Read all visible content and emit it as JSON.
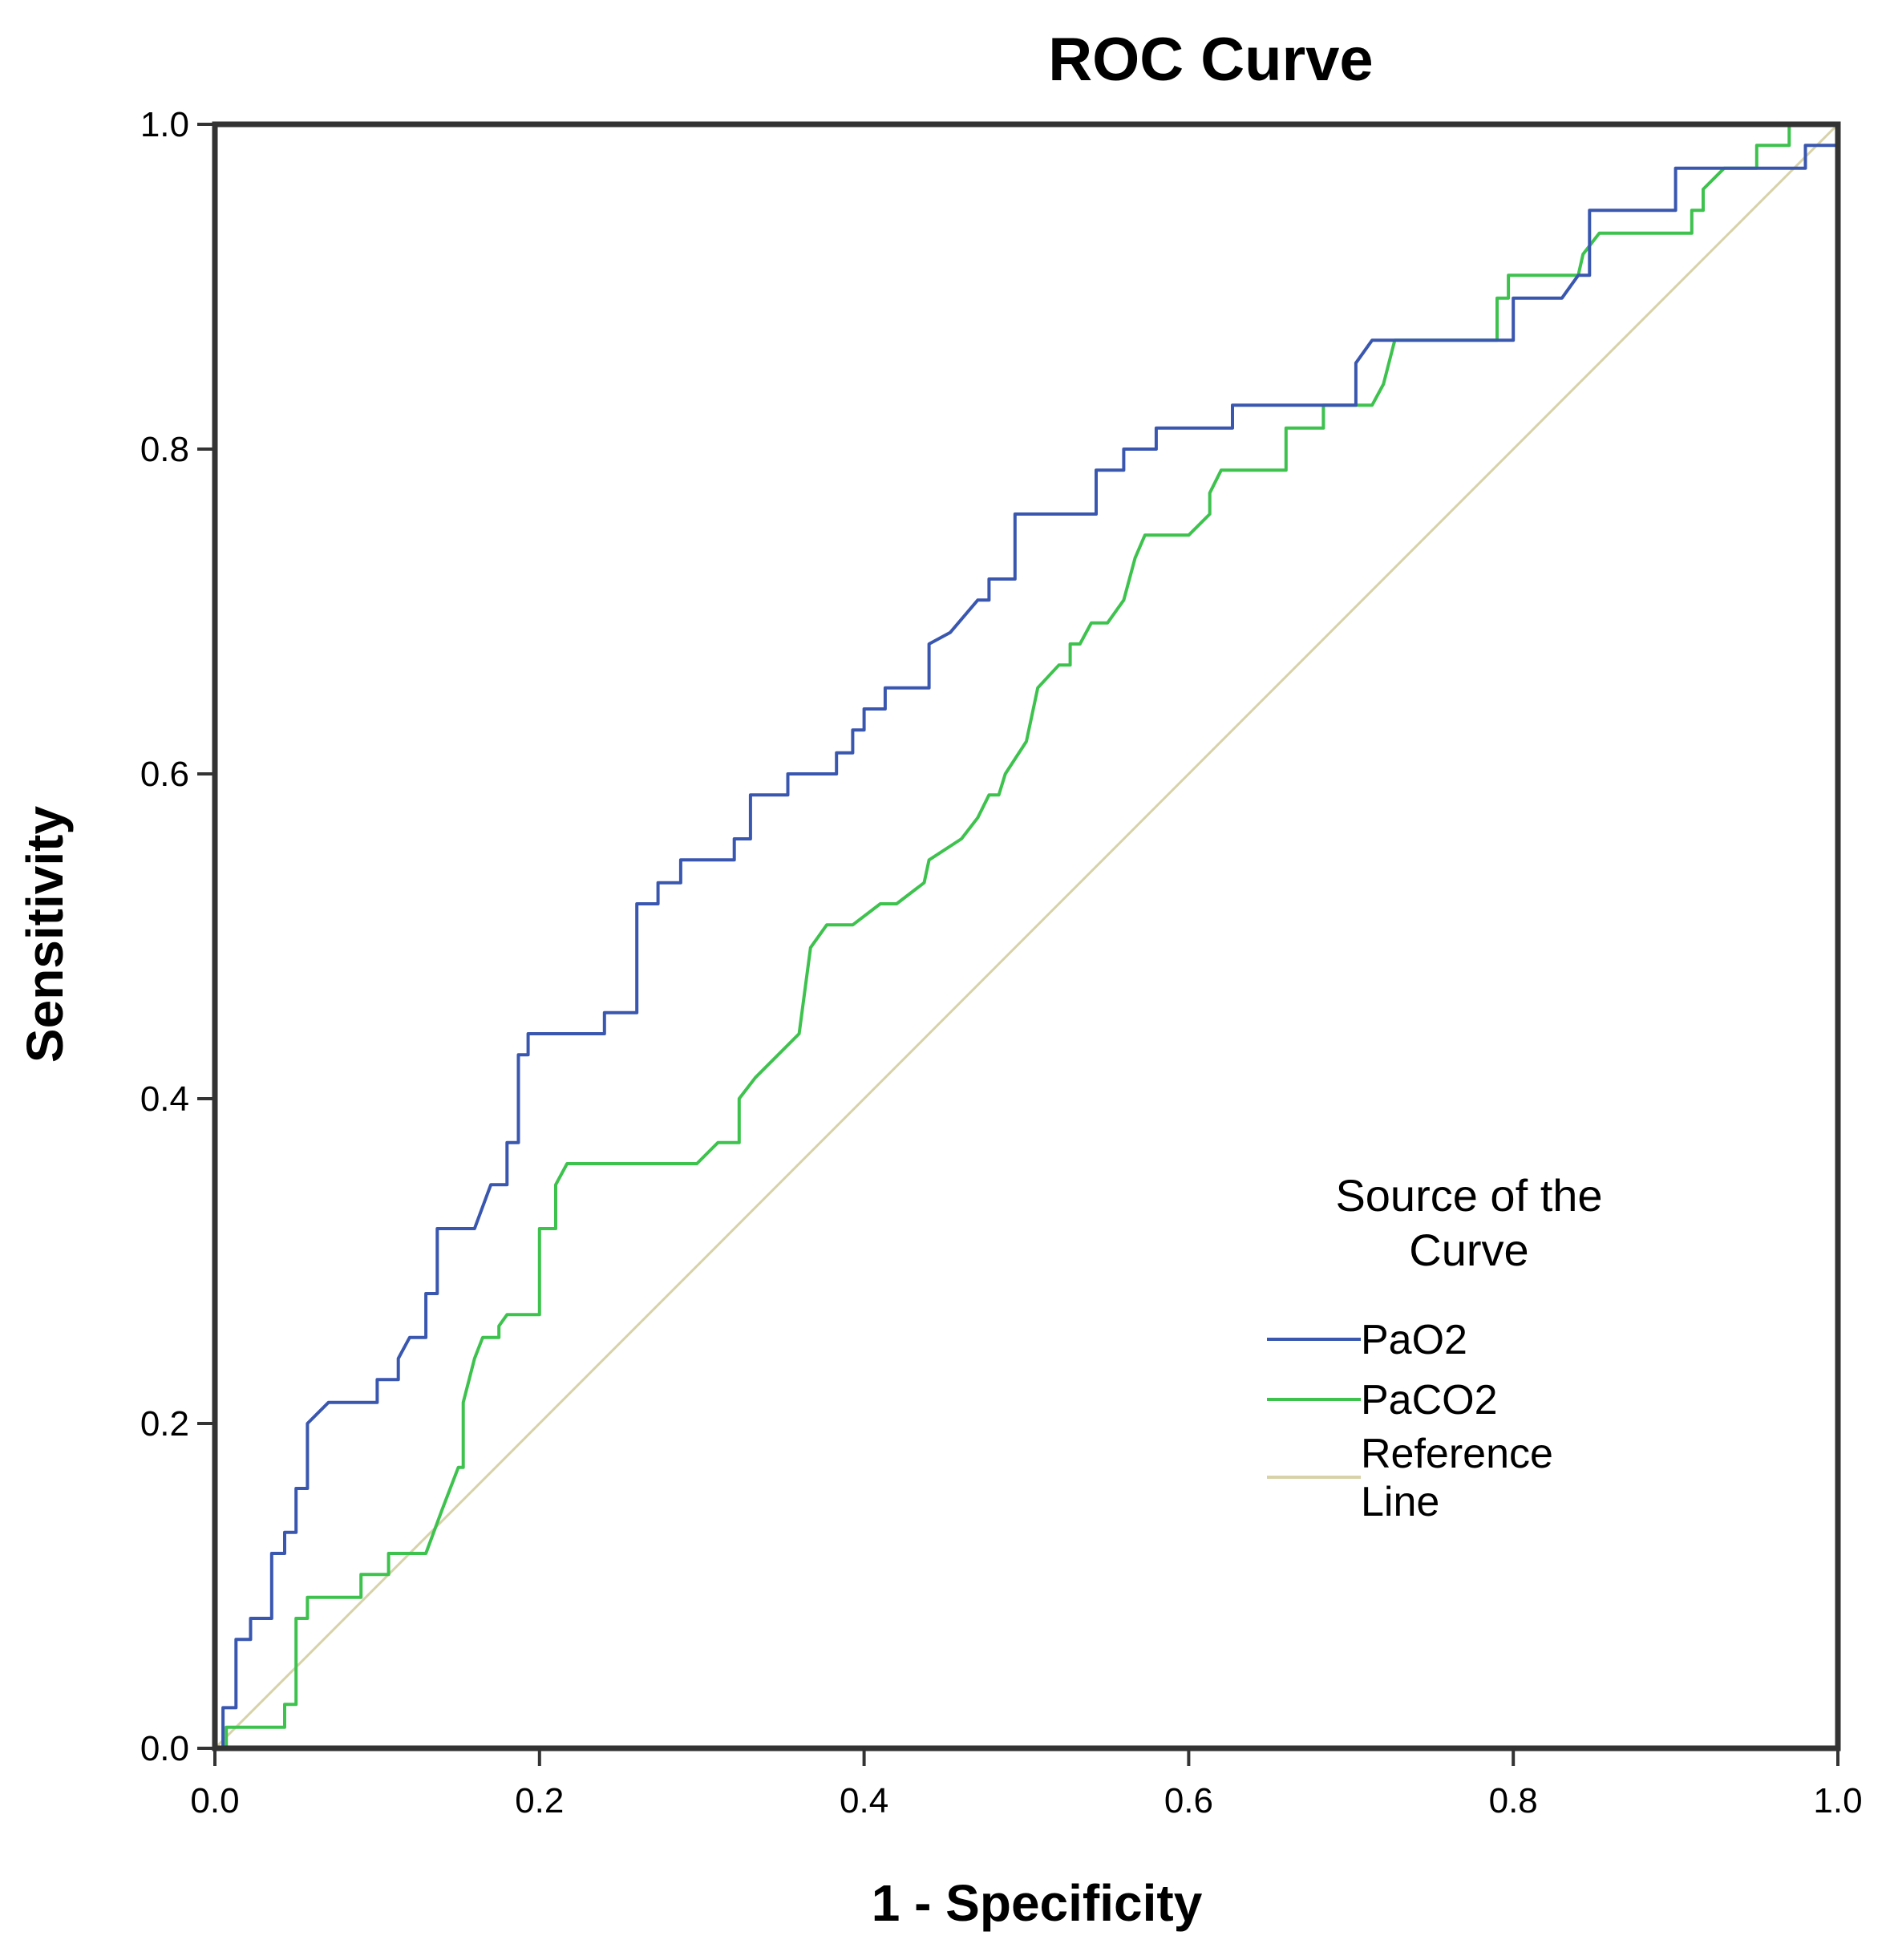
{
  "chart_data": {
    "type": "line",
    "title": "ROC Curve",
    "xlabel": "1 - Specificity",
    "ylabel": "Sensitivity",
    "xlim": [
      0,
      1
    ],
    "ylim": [
      0,
      1
    ],
    "x_ticks": [
      "0.0",
      "0.2",
      "0.4",
      "0.6",
      "0.8",
      "1.0"
    ],
    "y_ticks": [
      "0.0",
      "0.2",
      "0.4",
      "0.6",
      "0.8",
      "1.0"
    ],
    "grid": false,
    "legend": {
      "title": "Source of the Curve",
      "title_lines": [
        "Source of the",
        "Curve"
      ],
      "placement": "right-center"
    },
    "series": [
      {
        "name": "PaO2",
        "color": "#3a57b0",
        "points": [
          [
            0,
            0
          ],
          [
            0.005,
            0
          ],
          [
            0.005,
            0.025
          ],
          [
            0.013,
            0.025
          ],
          [
            0.013,
            0.067
          ],
          [
            0.022,
            0.067
          ],
          [
            0.022,
            0.08
          ],
          [
            0.035,
            0.08
          ],
          [
            0.035,
            0.12
          ],
          [
            0.043,
            0.12
          ],
          [
            0.043,
            0.133
          ],
          [
            0.05,
            0.133
          ],
          [
            0.05,
            0.16
          ],
          [
            0.057,
            0.16
          ],
          [
            0.057,
            0.2
          ],
          [
            0.07,
            0.213
          ],
          [
            0.1,
            0.213
          ],
          [
            0.1,
            0.227
          ],
          [
            0.113,
            0.227
          ],
          [
            0.113,
            0.24
          ],
          [
            0.12,
            0.253
          ],
          [
            0.13,
            0.253
          ],
          [
            0.13,
            0.28
          ],
          [
            0.137,
            0.28
          ],
          [
            0.137,
            0.32
          ],
          [
            0.16,
            0.32
          ],
          [
            0.17,
            0.347
          ],
          [
            0.18,
            0.347
          ],
          [
            0.18,
            0.373
          ],
          [
            0.187,
            0.373
          ],
          [
            0.187,
            0.427
          ],
          [
            0.193,
            0.427
          ],
          [
            0.193,
            0.44
          ],
          [
            0.24,
            0.44
          ],
          [
            0.24,
            0.453
          ],
          [
            0.26,
            0.453
          ],
          [
            0.26,
            0.52
          ],
          [
            0.273,
            0.52
          ],
          [
            0.273,
            0.533
          ],
          [
            0.287,
            0.533
          ],
          [
            0.287,
            0.547
          ],
          [
            0.32,
            0.547
          ],
          [
            0.32,
            0.56
          ],
          [
            0.33,
            0.56
          ],
          [
            0.33,
            0.587
          ],
          [
            0.353,
            0.587
          ],
          [
            0.353,
            0.6
          ],
          [
            0.383,
            0.6
          ],
          [
            0.383,
            0.613
          ],
          [
            0.393,
            0.613
          ],
          [
            0.393,
            0.627
          ],
          [
            0.4,
            0.627
          ],
          [
            0.4,
            0.64
          ],
          [
            0.413,
            0.64
          ],
          [
            0.413,
            0.653
          ],
          [
            0.44,
            0.653
          ],
          [
            0.44,
            0.68
          ],
          [
            0.453,
            0.687
          ],
          [
            0.47,
            0.707
          ],
          [
            0.477,
            0.707
          ],
          [
            0.477,
            0.72
          ],
          [
            0.493,
            0.72
          ],
          [
            0.493,
            0.76
          ],
          [
            0.543,
            0.76
          ],
          [
            0.543,
            0.787
          ],
          [
            0.56,
            0.787
          ],
          [
            0.56,
            0.8
          ],
          [
            0.58,
            0.8
          ],
          [
            0.58,
            0.813
          ],
          [
            0.627,
            0.813
          ],
          [
            0.627,
            0.827
          ],
          [
            0.703,
            0.827
          ],
          [
            0.703,
            0.853
          ],
          [
            0.713,
            0.867
          ],
          [
            0.8,
            0.867
          ],
          [
            0.8,
            0.893
          ],
          [
            0.83,
            0.893
          ],
          [
            0.84,
            0.907
          ],
          [
            0.847,
            0.907
          ],
          [
            0.847,
            0.947
          ],
          [
            0.9,
            0.947
          ],
          [
            0.9,
            0.973
          ],
          [
            0.98,
            0.973
          ],
          [
            0.98,
            0.987
          ],
          [
            1,
            0.987
          ]
        ]
      },
      {
        "name": "PaCO2",
        "color": "#3ec24e",
        "points": [
          [
            0,
            0
          ],
          [
            0.007,
            0
          ],
          [
            0.007,
            0.013
          ],
          [
            0.043,
            0.013
          ],
          [
            0.043,
            0.027
          ],
          [
            0.05,
            0.027
          ],
          [
            0.05,
            0.08
          ],
          [
            0.057,
            0.08
          ],
          [
            0.057,
            0.093
          ],
          [
            0.09,
            0.093
          ],
          [
            0.09,
            0.107
          ],
          [
            0.107,
            0.107
          ],
          [
            0.107,
            0.12
          ],
          [
            0.13,
            0.12
          ],
          [
            0.14,
            0.147
          ],
          [
            0.145,
            0.16
          ],
          [
            0.15,
            0.173
          ],
          [
            0.153,
            0.173
          ],
          [
            0.153,
            0.213
          ],
          [
            0.16,
            0.24
          ],
          [
            0.165,
            0.253
          ],
          [
            0.175,
            0.253
          ],
          [
            0.175,
            0.26
          ],
          [
            0.18,
            0.267
          ],
          [
            0.2,
            0.267
          ],
          [
            0.2,
            0.32
          ],
          [
            0.21,
            0.32
          ],
          [
            0.21,
            0.347
          ],
          [
            0.217,
            0.36
          ],
          [
            0.297,
            0.36
          ],
          [
            0.31,
            0.373
          ],
          [
            0.323,
            0.373
          ],
          [
            0.323,
            0.4
          ],
          [
            0.333,
            0.413
          ],
          [
            0.36,
            0.44
          ],
          [
            0.367,
            0.493
          ],
          [
            0.377,
            0.507
          ],
          [
            0.393,
            0.507
          ],
          [
            0.41,
            0.52
          ],
          [
            0.42,
            0.52
          ],
          [
            0.437,
            0.533
          ],
          [
            0.44,
            0.547
          ],
          [
            0.46,
            0.56
          ],
          [
            0.47,
            0.573
          ],
          [
            0.477,
            0.587
          ],
          [
            0.483,
            0.587
          ],
          [
            0.487,
            0.6
          ],
          [
            0.5,
            0.62
          ],
          [
            0.507,
            0.653
          ],
          [
            0.52,
            0.667
          ],
          [
            0.527,
            0.667
          ],
          [
            0.527,
            0.68
          ],
          [
            0.533,
            0.68
          ],
          [
            0.54,
            0.693
          ],
          [
            0.55,
            0.693
          ],
          [
            0.56,
            0.707
          ],
          [
            0.567,
            0.733
          ],
          [
            0.573,
            0.747
          ],
          [
            0.6,
            0.747
          ],
          [
            0.613,
            0.76
          ],
          [
            0.613,
            0.773
          ],
          [
            0.62,
            0.787
          ],
          [
            0.66,
            0.787
          ],
          [
            0.66,
            0.813
          ],
          [
            0.683,
            0.813
          ],
          [
            0.683,
            0.827
          ],
          [
            0.713,
            0.827
          ],
          [
            0.72,
            0.84
          ],
          [
            0.727,
            0.867
          ],
          [
            0.79,
            0.867
          ],
          [
            0.79,
            0.893
          ],
          [
            0.797,
            0.893
          ],
          [
            0.797,
            0.907
          ],
          [
            0.84,
            0.907
          ],
          [
            0.843,
            0.92
          ],
          [
            0.853,
            0.933
          ],
          [
            0.91,
            0.933
          ],
          [
            0.91,
            0.947
          ],
          [
            0.917,
            0.947
          ],
          [
            0.917,
            0.96
          ],
          [
            0.93,
            0.973
          ],
          [
            0.95,
            0.973
          ],
          [
            0.95,
            0.987
          ],
          [
            0.97,
            0.987
          ],
          [
            0.97,
            1
          ],
          [
            1,
            1
          ]
        ]
      },
      {
        "name": "Reference Line",
        "name_lines": [
          "Reference",
          "Line"
        ],
        "color": "#d8d2a8",
        "points": [
          [
            0,
            0
          ],
          [
            1,
            1
          ]
        ]
      }
    ]
  }
}
